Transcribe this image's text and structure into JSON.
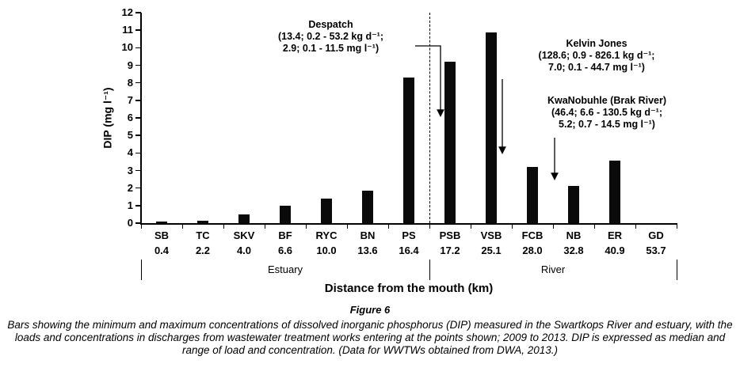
{
  "figure": {
    "number": "Figure 6",
    "caption": "Bars showing the minimum and maximum concentrations of dissolved inorganic phosphorus (DIP) measured in the Swartkops River and estuary, with the loads and concentrations in discharges from wastewater treatment works entering at the points shown; 2009 to 2013. DIP is expressed as median and range of load and concentration. (Data for WWTWs obtained from DWA, 2013.)"
  },
  "chart_data": {
    "type": "bar",
    "title": "",
    "ylabel": "DIP (mg l⁻¹)",
    "xlabel": "Distance from the mouth (km)",
    "ylim": [
      0,
      12
    ],
    "ytick_step": 1,
    "grid": false,
    "categories": [
      "SB",
      "TC",
      "SKV",
      "BF",
      "RYC",
      "BN",
      "PS",
      "PSB",
      "VSB",
      "FCB",
      "NB",
      "ER",
      "GD"
    ],
    "distances_km": [
      "0.4",
      "2.2",
      "4.0",
      "6.6",
      "10.0",
      "13.6",
      "16.4",
      "17.2",
      "25.1",
      "28.0",
      "32.8",
      "40.9",
      "53.7"
    ],
    "values": [
      0.1,
      0.15,
      0.5,
      1.0,
      1.4,
      1.85,
      8.3,
      9.2,
      10.85,
      3.2,
      2.1,
      3.55,
      0
    ],
    "separator_after_index": 6,
    "groups": [
      {
        "label": "Estuary",
        "from": 0,
        "to": 6
      },
      {
        "label": "River",
        "from": 7,
        "to": 12
      }
    ],
    "annotations": [
      {
        "name": "Despatch",
        "text": "Despatch\n(13.4;  0.2 - 53.2 kg d⁻¹;\n2.9;  0.1 - 11.5 mg l⁻¹)"
      },
      {
        "name": "Kelvin Jones",
        "text": "Kelvin Jones\n(128.6; 0.9 - 826.1 kg d⁻¹;\n7.0;  0.1 - 44.7 mg l⁻¹)"
      },
      {
        "name": "KwaNobuhle (Brak River)",
        "text": "KwaNobuhle (Brak River)\n(46.4; 6.6 - 130.5 kg d⁻¹;\n5.2;  0.7 - 14.5 mg l⁻¹)"
      }
    ]
  }
}
